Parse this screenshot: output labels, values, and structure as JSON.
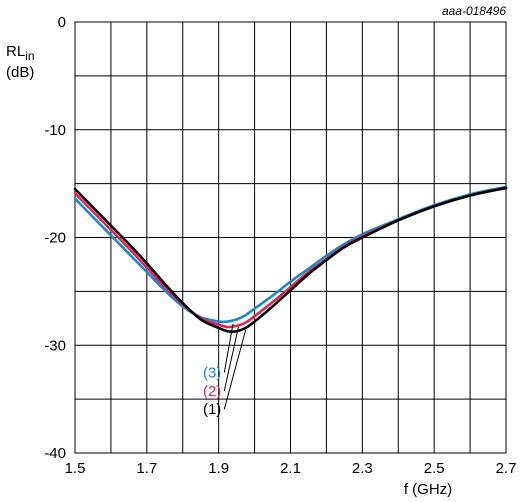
{
  "chart_data": {
    "type": "line",
    "reference": "aaa-018496",
    "ylabel_main": "RL",
    "ylabel_sub": "in",
    "ylabel_unit": "(dB)",
    "xlabel": "f (GHz)",
    "xlim": [
      1.5,
      2.7
    ],
    "ylim": [
      -40,
      0
    ],
    "x_ticks": [
      "1.5",
      "1.7",
      "1.9",
      "2.1",
      "2.3",
      "2.5",
      "2.7"
    ],
    "y_ticks": [
      "0",
      "-10",
      "-20",
      "-30",
      "-40"
    ],
    "x_grid": [
      1.5,
      1.6,
      1.7,
      1.8,
      1.9,
      2.0,
      2.1,
      2.2,
      2.3,
      2.4,
      2.5,
      2.6,
      2.7
    ],
    "y_grid": [
      0,
      -5,
      -10,
      -15,
      -20,
      -25,
      -30,
      -35,
      -40
    ],
    "grid": true,
    "series": [
      {
        "name": "(1)",
        "color": "#000000",
        "x": [
          1.5,
          1.55,
          1.6,
          1.65,
          1.7,
          1.75,
          1.8,
          1.85,
          1.9,
          1.925,
          1.95,
          1.975,
          2.0,
          2.05,
          2.1,
          2.15,
          2.2,
          2.25,
          2.3,
          2.4,
          2.5,
          2.6,
          2.7
        ],
        "y": [
          -15.5,
          -17.2,
          -18.9,
          -20.6,
          -22.4,
          -24.3,
          -26.1,
          -27.6,
          -28.4,
          -28.7,
          -28.7,
          -28.4,
          -27.8,
          -26.4,
          -24.9,
          -23.4,
          -22.1,
          -20.9,
          -20.0,
          -18.4,
          -17.1,
          -16.1,
          -15.4
        ]
      },
      {
        "name": "(2)",
        "color": "#e0245e",
        "x": [
          1.5,
          1.55,
          1.6,
          1.65,
          1.7,
          1.75,
          1.8,
          1.85,
          1.9,
          1.925,
          1.95,
          1.975,
          2.0,
          2.05,
          2.1,
          2.15,
          2.2,
          2.25,
          2.3,
          2.4,
          2.5,
          2.6,
          2.7
        ],
        "y": [
          -15.9,
          -17.6,
          -19.3,
          -21.0,
          -22.8,
          -24.6,
          -26.2,
          -27.5,
          -28.1,
          -28.3,
          -28.2,
          -27.9,
          -27.3,
          -26.0,
          -24.6,
          -23.2,
          -22.0,
          -20.8,
          -19.9,
          -18.4,
          -17.1,
          -16.1,
          -15.4
        ]
      },
      {
        "name": "(3)",
        "color": "#1f86c8",
        "x": [
          1.5,
          1.55,
          1.6,
          1.65,
          1.7,
          1.75,
          1.8,
          1.85,
          1.9,
          1.925,
          1.95,
          1.975,
          2.0,
          2.05,
          2.1,
          2.15,
          2.2,
          2.25,
          2.3,
          2.4,
          2.5,
          2.6,
          2.7
        ],
        "y": [
          -16.4,
          -18.1,
          -19.8,
          -21.5,
          -23.2,
          -24.9,
          -26.4,
          -27.4,
          -27.8,
          -27.8,
          -27.6,
          -27.2,
          -26.6,
          -25.4,
          -24.1,
          -22.9,
          -21.7,
          -20.6,
          -19.7,
          -18.3,
          -17.0,
          -16.0,
          -15.3
        ]
      }
    ],
    "annotations": [
      {
        "label": "(3)",
        "color": "#1f86c8",
        "x_point": 1.94,
        "y_point": -28.0,
        "y_text": -33.0
      },
      {
        "label": "(2)",
        "color": "#e0245e",
        "x_point": 1.955,
        "y_point": -28.3,
        "y_text": -34.7
      },
      {
        "label": "(1)",
        "color": "#000000",
        "x_point": 1.975,
        "y_point": -28.6,
        "y_text": -36.4
      }
    ]
  }
}
